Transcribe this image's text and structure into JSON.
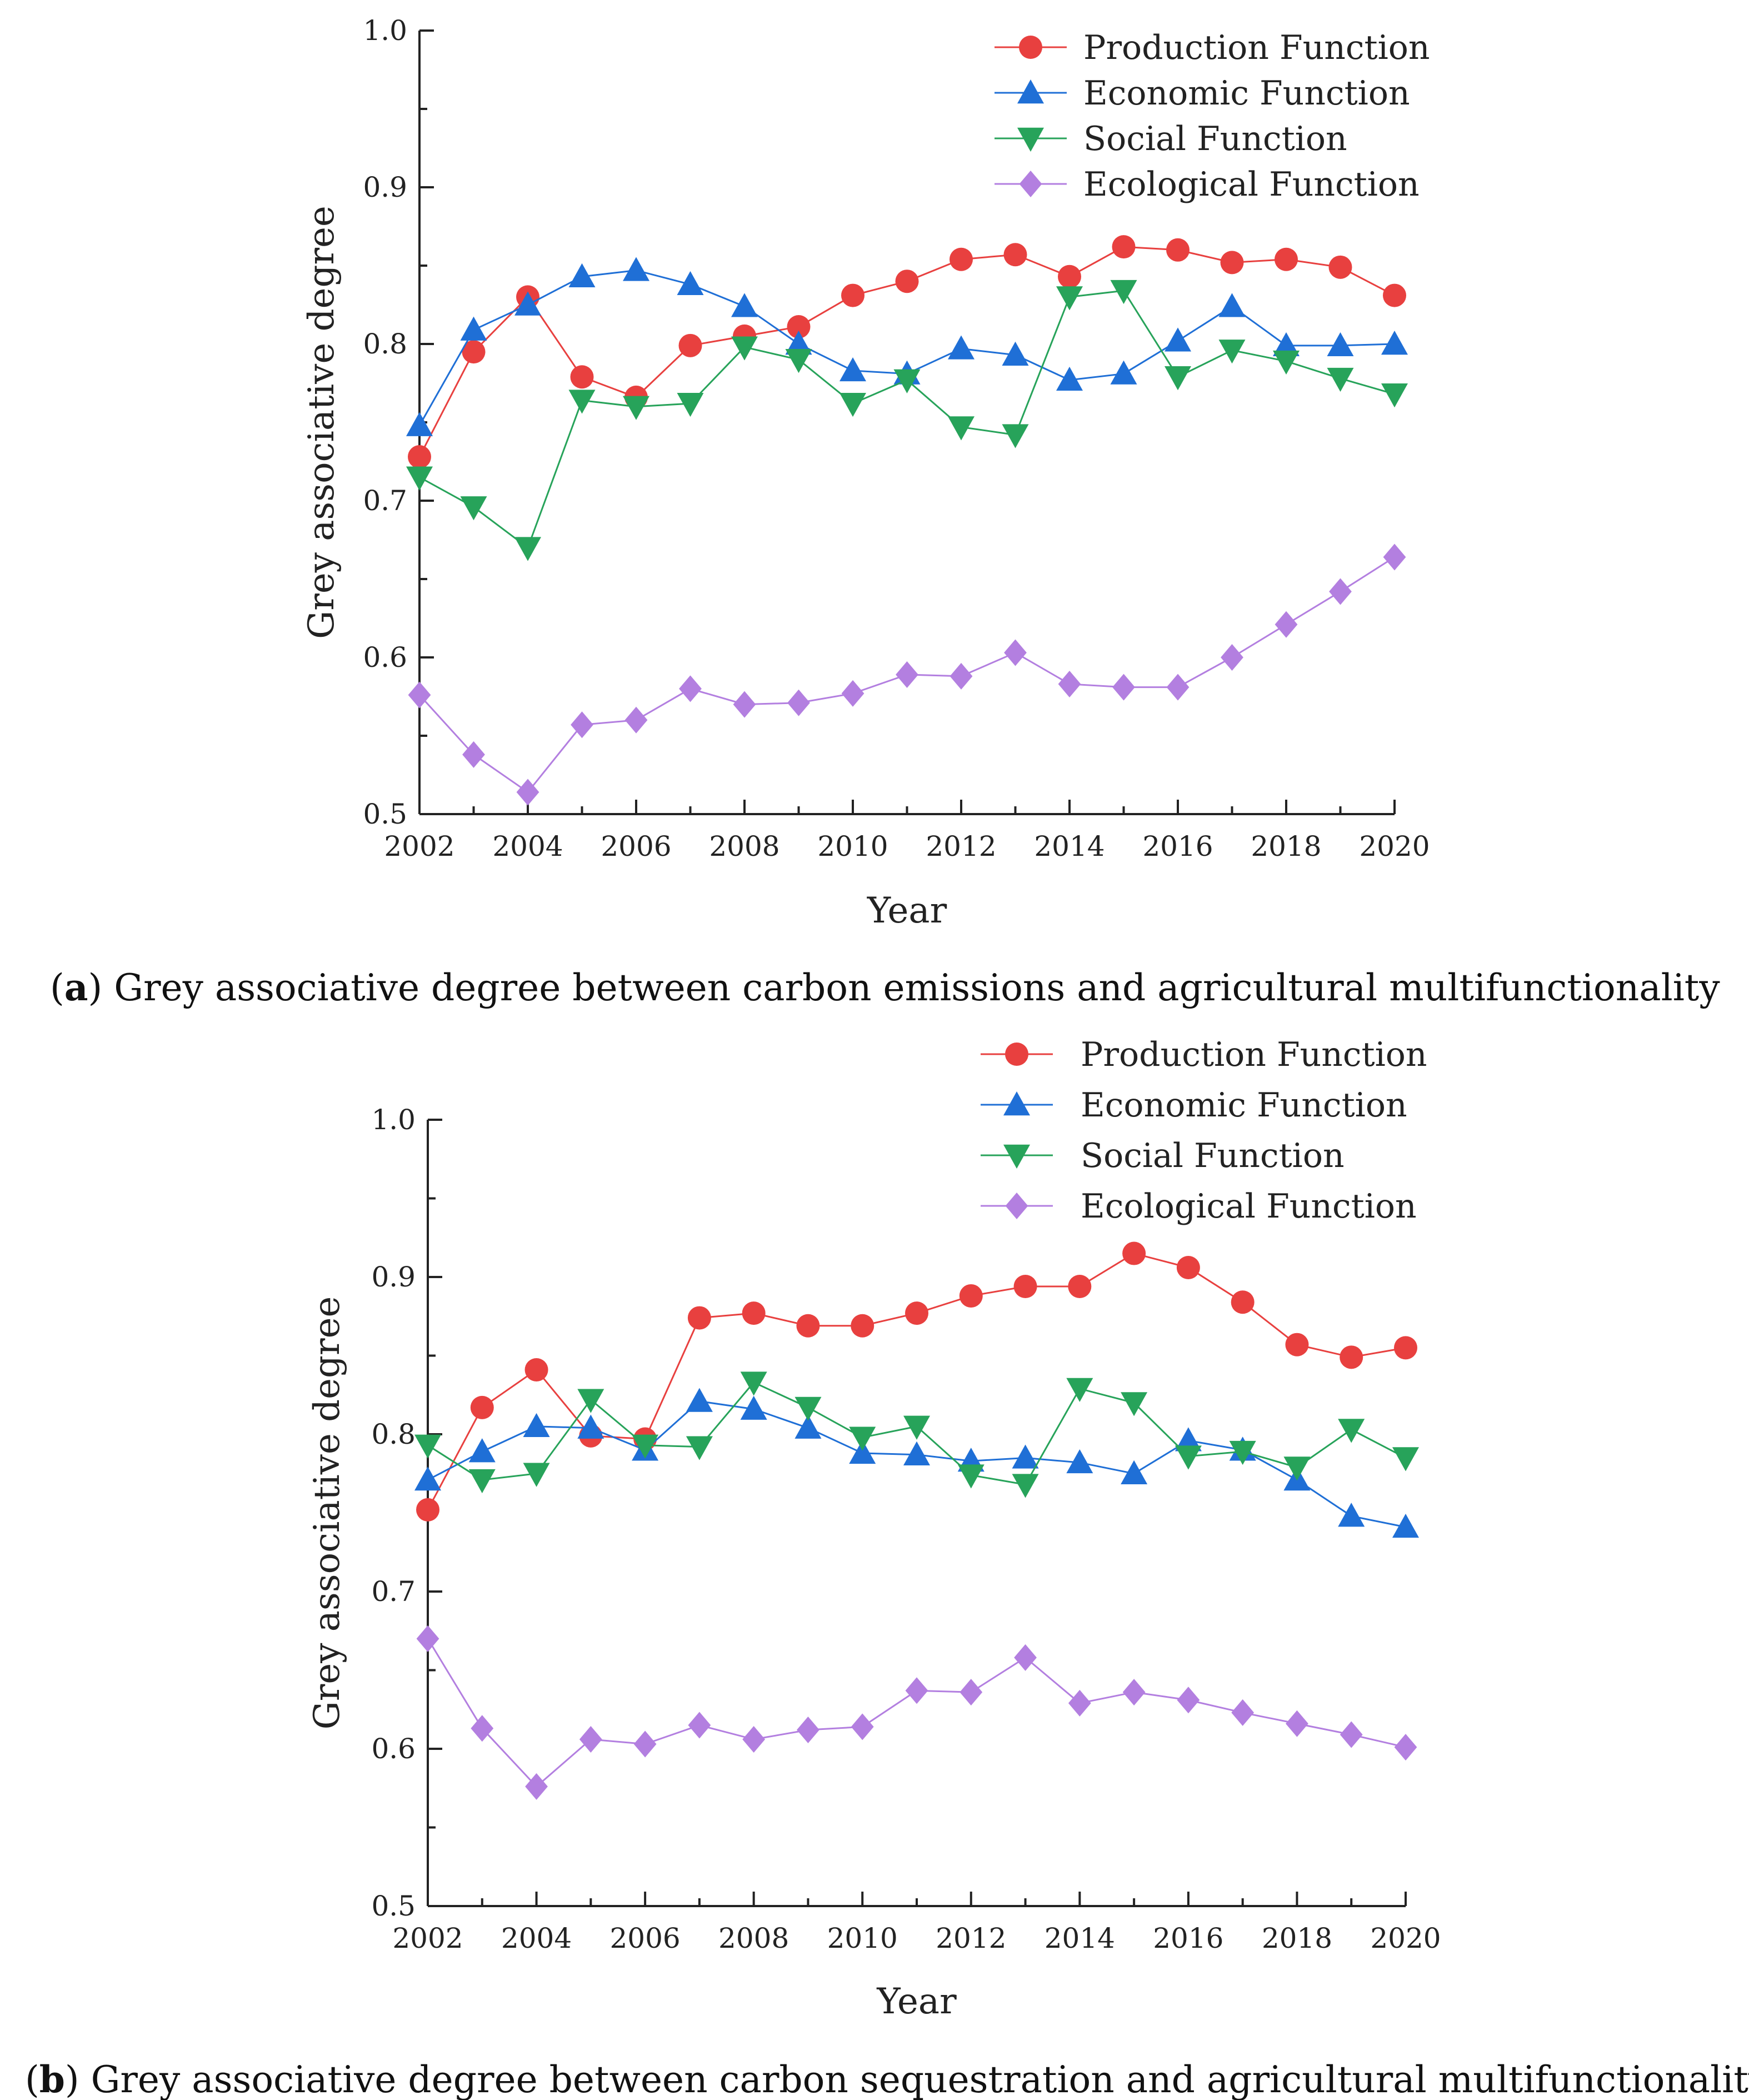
{
  "chart_data": [
    {
      "type": "line",
      "caption_label": "a",
      "caption_text": "Grey associative degree between carbon emissions and agricultural multifunctionality",
      "xlabel": "Year",
      "ylabel": "Grey associative degree",
      "xlim": [
        2002,
        2020
      ],
      "ylim": [
        0.5,
        1.0
      ],
      "xticks": [
        "2002",
        "2004",
        "2006",
        "2008",
        "2010",
        "2012",
        "2014",
        "2016",
        "2018",
        "2020"
      ],
      "yticks": [
        "0.5",
        "0.6",
        "0.7",
        "0.8",
        "0.9",
        "1.0"
      ],
      "legend_position": "top-right",
      "x": [
        2002,
        2003,
        2004,
        2005,
        2006,
        2007,
        2008,
        2009,
        2010,
        2011,
        2012,
        2013,
        2014,
        2015,
        2016,
        2017,
        2018,
        2019,
        2020
      ],
      "series": [
        {
          "name": "Production Function",
          "color": "#e8403f",
          "marker": "circle",
          "values": [
            0.728,
            0.795,
            0.83,
            0.779,
            0.766,
            0.799,
            0.805,
            0.811,
            0.831,
            0.84,
            0.854,
            0.857,
            0.843,
            0.862,
            0.86,
            0.852,
            0.854,
            0.849,
            0.831
          ]
        },
        {
          "name": "Economic Function",
          "color": "#1f6fd6",
          "marker": "triangle-up",
          "values": [
            0.748,
            0.809,
            0.825,
            0.843,
            0.847,
            0.838,
            0.824,
            0.8,
            0.783,
            0.781,
            0.797,
            0.793,
            0.777,
            0.781,
            0.802,
            0.824,
            0.799,
            0.799,
            0.8
          ]
        },
        {
          "name": "Social Function",
          "color": "#27a35a",
          "marker": "triangle-down",
          "values": [
            0.715,
            0.696,
            0.67,
            0.764,
            0.76,
            0.762,
            0.798,
            0.79,
            0.762,
            0.777,
            0.747,
            0.742,
            0.83,
            0.834,
            0.779,
            0.796,
            0.789,
            0.778,
            0.768
          ]
        },
        {
          "name": "Ecological Function",
          "color": "#b37fe0",
          "marker": "diamond",
          "values": [
            0.576,
            0.538,
            0.514,
            0.557,
            0.56,
            0.58,
            0.57,
            0.571,
            0.577,
            0.589,
            0.588,
            0.603,
            0.583,
            0.581,
            0.581,
            0.6,
            0.621,
            0.642,
            0.664
          ]
        }
      ]
    },
    {
      "type": "line",
      "caption_label": "b",
      "caption_text": "Grey associative degree between carbon sequestration and agricultural multifunctionality",
      "xlabel": "Year",
      "ylabel": "Grey associative degree",
      "xlim": [
        2002,
        2020
      ],
      "ylim": [
        0.5,
        1.0
      ],
      "xticks": [
        "2002",
        "2004",
        "2006",
        "2008",
        "2010",
        "2012",
        "2014",
        "2016",
        "2018",
        "2020"
      ],
      "yticks": [
        "0.5",
        "0.6",
        "0.7",
        "0.8",
        "0.9",
        "1.0"
      ],
      "legend_position": "top-right",
      "x": [
        2002,
        2003,
        2004,
        2005,
        2006,
        2007,
        2008,
        2009,
        2010,
        2011,
        2012,
        2013,
        2014,
        2015,
        2016,
        2017,
        2018,
        2019,
        2020
      ],
      "series": [
        {
          "name": "Production Function",
          "color": "#e8403f",
          "marker": "circle",
          "values": [
            0.752,
            0.817,
            0.841,
            0.799,
            0.797,
            0.874,
            0.877,
            0.869,
            0.869,
            0.877,
            0.888,
            0.894,
            0.894,
            0.915,
            0.906,
            0.884,
            0.857,
            0.849,
            0.855
          ]
        },
        {
          "name": "Economic Function",
          "color": "#1f6fd6",
          "marker": "triangle-up",
          "values": [
            0.771,
            0.789,
            0.805,
            0.804,
            0.79,
            0.821,
            0.816,
            0.804,
            0.788,
            0.787,
            0.783,
            0.785,
            0.782,
            0.775,
            0.796,
            0.79,
            0.771,
            0.748,
            0.741
          ]
        },
        {
          "name": "Social Function",
          "color": "#27a35a",
          "marker": "triangle-down",
          "values": [
            0.793,
            0.771,
            0.775,
            0.822,
            0.793,
            0.792,
            0.833,
            0.817,
            0.798,
            0.805,
            0.774,
            0.768,
            0.829,
            0.82,
            0.786,
            0.789,
            0.779,
            0.803,
            0.785
          ]
        },
        {
          "name": "Ecological Function",
          "color": "#b37fe0",
          "marker": "diamond",
          "values": [
            0.67,
            0.613,
            0.576,
            0.606,
            0.603,
            0.615,
            0.606,
            0.612,
            0.614,
            0.637,
            0.636,
            0.658,
            0.629,
            0.636,
            0.631,
            0.623,
            0.616,
            0.609,
            0.601
          ]
        }
      ]
    }
  ]
}
